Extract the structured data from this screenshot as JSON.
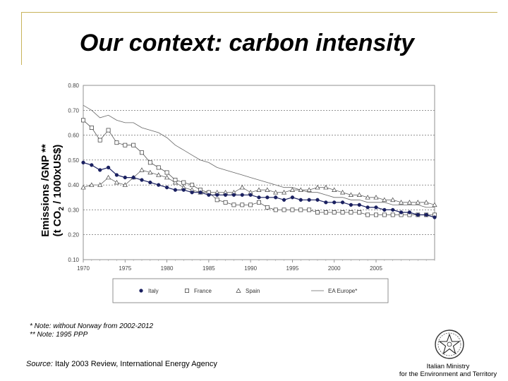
{
  "slide": {
    "title": "Our context: carbon intensity",
    "ylabel_line1": "Emissions /GNP **",
    "ylabel_line2_pre": "(t CO",
    "ylabel_line2_sub": "2",
    "ylabel_line2_post": " / 1000xUS$)",
    "note1": "* Note: without Norway from 2002-2012",
    "note2": "** Note: 1995 PPP",
    "source_label": "Source:",
    "source_text": " Italy 2003 Review, International Energy Agency",
    "ministry_line1": "Italian Ministry",
    "ministry_line2": "for the Environment and Territory"
  },
  "chart_data": {
    "type": "line",
    "title": "",
    "xlabel": "",
    "ylabel": "Emissions /GNP ** (t CO2 / 1000xUS$)",
    "xlim": [
      1970,
      2012
    ],
    "ylim": [
      0.1,
      0.8
    ],
    "yticks": [
      "0.80",
      "0.70",
      "0.60",
      "0.50",
      "0.40",
      "0.30",
      "0.20",
      "0.10"
    ],
    "xticks": [
      "1970",
      "1975",
      "1980",
      "1985",
      "1990",
      "1995",
      "2000",
      "2005"
    ],
    "grid": true,
    "legend_position": "bottom",
    "series": [
      {
        "name": "Italy",
        "marker": "filled-circle",
        "x": [
          1970,
          1971,
          1972,
          1973,
          1974,
          1975,
          1976,
          1977,
          1978,
          1979,
          1980,
          1981,
          1982,
          1983,
          1984,
          1985,
          1986,
          1987,
          1988,
          1989,
          1990,
          1991,
          1992,
          1993,
          1994,
          1995,
          1996,
          1997,
          1998,
          1999,
          2000,
          2001,
          2002,
          2003,
          2004,
          2005,
          2006,
          2007,
          2008,
          2009,
          2010,
          2011,
          2012
        ],
        "values": [
          0.49,
          0.48,
          0.46,
          0.47,
          0.44,
          0.43,
          0.43,
          0.42,
          0.41,
          0.4,
          0.39,
          0.38,
          0.38,
          0.37,
          0.37,
          0.36,
          0.36,
          0.36,
          0.36,
          0.36,
          0.36,
          0.35,
          0.35,
          0.35,
          0.34,
          0.35,
          0.34,
          0.34,
          0.34,
          0.33,
          0.33,
          0.33,
          0.32,
          0.32,
          0.31,
          0.31,
          0.3,
          0.3,
          0.29,
          0.29,
          0.28,
          0.28,
          0.27
        ]
      },
      {
        "name": "France",
        "marker": "open-square",
        "x": [
          1970,
          1971,
          1972,
          1973,
          1974,
          1975,
          1976,
          1977,
          1978,
          1979,
          1980,
          1981,
          1982,
          1983,
          1984,
          1985,
          1986,
          1987,
          1988,
          1989,
          1990,
          1991,
          1992,
          1993,
          1994,
          1995,
          1996,
          1997,
          1998,
          1999,
          2000,
          2001,
          2002,
          2003,
          2004,
          2005,
          2006,
          2007,
          2008,
          2009,
          2010,
          2011,
          2012
        ],
        "values": [
          0.66,
          0.63,
          0.58,
          0.62,
          0.57,
          0.56,
          0.56,
          0.53,
          0.49,
          0.47,
          0.45,
          0.42,
          0.41,
          0.4,
          0.38,
          0.37,
          0.34,
          0.33,
          0.32,
          0.32,
          0.32,
          0.33,
          0.31,
          0.3,
          0.3,
          0.3,
          0.3,
          0.3,
          0.29,
          0.29,
          0.29,
          0.29,
          0.29,
          0.29,
          0.28,
          0.28,
          0.28,
          0.28,
          0.28,
          0.28,
          0.28,
          0.28,
          0.28
        ]
      },
      {
        "name": "Spain",
        "marker": "open-triangle",
        "x": [
          1970,
          1971,
          1972,
          1973,
          1974,
          1975,
          1976,
          1977,
          1978,
          1979,
          1980,
          1981,
          1982,
          1983,
          1984,
          1985,
          1986,
          1987,
          1988,
          1989,
          1990,
          1991,
          1992,
          1993,
          1994,
          1995,
          1996,
          1997,
          1998,
          1999,
          2000,
          2001,
          2002,
          2003,
          2004,
          2005,
          2006,
          2007,
          2008,
          2009,
          2010,
          2011,
          2012
        ],
        "values": [
          0.39,
          0.4,
          0.4,
          0.43,
          0.41,
          0.4,
          0.43,
          0.46,
          0.45,
          0.44,
          0.43,
          0.41,
          0.39,
          0.38,
          0.37,
          0.37,
          0.37,
          0.37,
          0.37,
          0.39,
          0.37,
          0.38,
          0.38,
          0.37,
          0.37,
          0.38,
          0.38,
          0.38,
          0.39,
          0.39,
          0.38,
          0.37,
          0.36,
          0.36,
          0.35,
          0.35,
          0.34,
          0.34,
          0.33,
          0.33,
          0.33,
          0.33,
          0.32
        ]
      },
      {
        "name": "EA Europe*",
        "marker": "none",
        "x": [
          1970,
          1971,
          1972,
          1973,
          1974,
          1975,
          1976,
          1977,
          1978,
          1979,
          1980,
          1981,
          1982,
          1983,
          1984,
          1985,
          1986,
          1987,
          1988,
          1989,
          1990,
          1991,
          1992,
          1993,
          1994,
          1995,
          1996,
          1997,
          1998,
          1999,
          2000,
          2001,
          2002,
          2003,
          2004,
          2005,
          2006,
          2007,
          2008,
          2009,
          2010,
          2011,
          2012
        ],
        "values": [
          0.72,
          0.7,
          0.67,
          0.68,
          0.66,
          0.65,
          0.65,
          0.63,
          0.62,
          0.61,
          0.59,
          0.56,
          0.54,
          0.52,
          0.5,
          0.49,
          0.47,
          0.46,
          0.45,
          0.44,
          0.43,
          0.42,
          0.41,
          0.4,
          0.39,
          0.39,
          0.38,
          0.37,
          0.37,
          0.36,
          0.35,
          0.35,
          0.34,
          0.34,
          0.33,
          0.33,
          0.33,
          0.32,
          0.32,
          0.32,
          0.32,
          0.31,
          0.31
        ]
      }
    ]
  }
}
